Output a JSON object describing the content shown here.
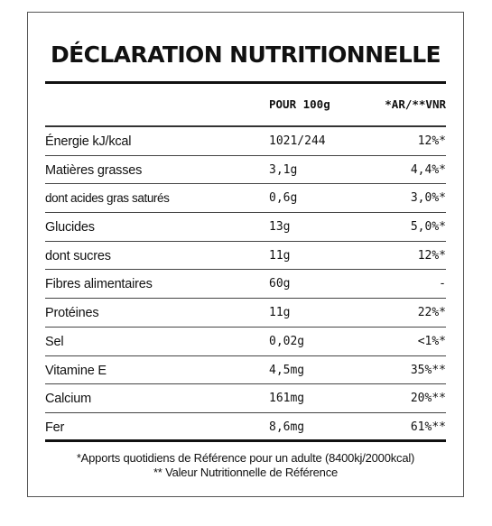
{
  "title": "DÉCLARATION NUTRITIONNELLE",
  "headers": {
    "per100": "POUR 100g",
    "ar": "*AR/**VNR"
  },
  "rows": [
    {
      "name": "Énergie kJ/kcal",
      "per100": "1021/244",
      "ar": "12%*"
    },
    {
      "name": "Matières grasses",
      "per100": "3,1g",
      "ar": "4,4%*"
    },
    {
      "name": "dont acides gras saturés",
      "per100": "0,6g",
      "ar": "3,0%*"
    },
    {
      "name": "Glucides",
      "per100": "13g",
      "ar": "5,0%*"
    },
    {
      "name": "dont sucres",
      "per100": "11g",
      "ar": "12%*"
    },
    {
      "name": "Fibres alimentaires",
      "per100": "60g",
      "ar": "-"
    },
    {
      "name": "Protéines",
      "per100": "11g",
      "ar": "22%*"
    },
    {
      "name": "Sel",
      "per100": "0,02g",
      "ar": "<1%*"
    },
    {
      "name": "Vitamine E",
      "per100": "4,5mg",
      "ar": "35%**"
    },
    {
      "name": "Calcium",
      "per100": "161mg",
      "ar": "20%**"
    },
    {
      "name": "Fer",
      "per100": "8,6mg",
      "ar": "61%**"
    }
  ],
  "footnotes": {
    "line1": "*Apports quotidiens de Référence pour un adulte (8400kj/2000kcal)",
    "line2": "** Valeur Nutritionnelle de Référence"
  }
}
